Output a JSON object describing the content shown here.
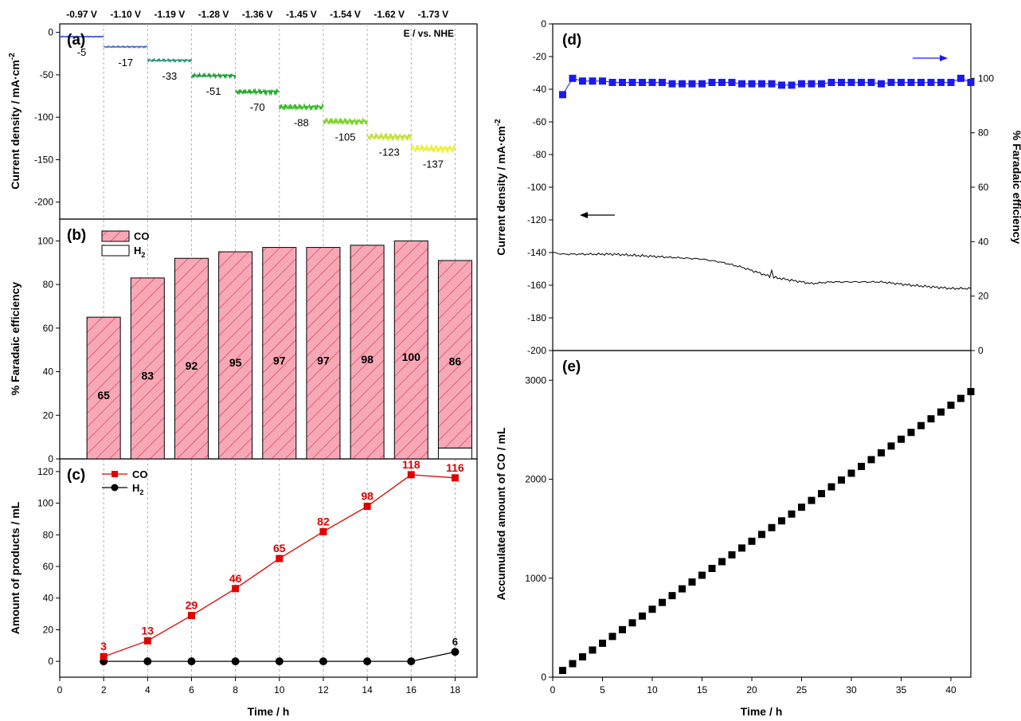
{
  "chart_data": [
    {
      "panel": "(a)",
      "type": "line",
      "ylabel": "Current density / mA·cm",
      "ylabel_sup": "-2",
      "xlim": [
        0,
        19
      ],
      "ylim": [
        -220,
        10
      ],
      "yticks": [
        0,
        -50,
        -100,
        -150,
        -200
      ],
      "annotation": "E / vs. NHE",
      "potentials": [
        "-0.97 V",
        "-1.10 V",
        "-1.19 V",
        "-1.28 V",
        "-1.36 V",
        "-1.45 V",
        "-1.54 V",
        "-1.62 V",
        "-1.73 V"
      ],
      "segments": [
        {
          "x": [
            0,
            2
          ],
          "value": -5,
          "label": "-5",
          "color": "#3a4fd6"
        },
        {
          "x": [
            2,
            4
          ],
          "value": -17,
          "label": "-17",
          "color": "#4a6fc0"
        },
        {
          "x": [
            4,
            6
          ],
          "value": -33,
          "label": "-33",
          "color": "#2a8f7a"
        },
        {
          "x": [
            6,
            8
          ],
          "value": -51,
          "label": "-51",
          "color": "#1f9a3c"
        },
        {
          "x": [
            8,
            10
          ],
          "value": -70,
          "label": "-70",
          "color": "#22a82a"
        },
        {
          "x": [
            10,
            12
          ],
          "value": -88,
          "label": "-88",
          "color": "#3cbc2a"
        },
        {
          "x": [
            12,
            14
          ],
          "value": -105,
          "label": "-105",
          "color": "#7fd12e"
        },
        {
          "x": [
            14,
            16
          ],
          "value": -123,
          "label": "-123",
          "color": "#c4e23a"
        },
        {
          "x": [
            16,
            18
          ],
          "value": -137,
          "label": "-137",
          "color": "#eeee3a"
        }
      ]
    },
    {
      "panel": "(b)",
      "type": "bar",
      "ylabel": "% Faradaic efficiency",
      "ylim": [
        0,
        110
      ],
      "yticks": [
        0,
        20,
        40,
        60,
        80,
        100
      ],
      "x": [
        2,
        4,
        6,
        8,
        10,
        12,
        14,
        16,
        18
      ],
      "series": [
        {
          "name": "CO",
          "values": [
            65,
            83,
            92,
            95,
            97,
            97,
            98,
            100,
            86
          ],
          "labels": [
            "65",
            "83",
            "92",
            "95",
            "97",
            "97",
            "98",
            "100",
            "86"
          ],
          "color": "#f7a8b6",
          "hatch": "#d9465c"
        },
        {
          "name": "H",
          "name_sub": "2",
          "values": [
            0,
            0,
            0,
            0,
            0,
            0,
            0,
            0,
            5
          ],
          "labels": [
            "",
            "",
            "",
            "",
            "",
            "",
            "",
            "",
            "5"
          ],
          "color": "#ffffff"
        }
      ]
    },
    {
      "panel": "(c)",
      "type": "line",
      "xlabel": "Time / h",
      "ylabel": "Amount of products / mL",
      "xlim": [
        0,
        19
      ],
      "xticks": [
        0,
        2,
        4,
        6,
        8,
        10,
        12,
        14,
        16,
        18
      ],
      "ylim": [
        -10,
        128
      ],
      "yticks": [
        0,
        20,
        40,
        60,
        80,
        100,
        120
      ],
      "x": [
        2,
        4,
        6,
        8,
        10,
        12,
        14,
        16,
        18
      ],
      "series": [
        {
          "name": "CO",
          "values": [
            3,
            13,
            29,
            46,
            65,
            82,
            98,
            118,
            116
          ],
          "labels": [
            "3",
            "13",
            "29",
            "46",
            "65",
            "82",
            "98",
            "118",
            "116"
          ],
          "color": "#e00000",
          "marker": "square"
        },
        {
          "name": "H",
          "name_sub": "2",
          "values": [
            0,
            0,
            0,
            0,
            0,
            0,
            0,
            0,
            6
          ],
          "labels": [
            "",
            "",
            "",
            "",
            "",
            "",
            "",
            "",
            "6"
          ],
          "color": "#000000",
          "marker": "circle"
        }
      ]
    },
    {
      "panel": "(d)",
      "type": "line",
      "ylabel": "Current density / mA·cm",
      "ylabel_sup": "-2",
      "y2label": "% Faradaic efficiency",
      "xlim": [
        0,
        42
      ],
      "ylim": [
        -200,
        0
      ],
      "yticks": [
        0,
        -20,
        -40,
        -60,
        -80,
        -100,
        -120,
        -140,
        -160,
        -180,
        -200
      ],
      "y2lim": [
        0,
        120
      ],
      "y2ticks": [
        0,
        20,
        40,
        60,
        80,
        100
      ],
      "faradaic_efficiency": {
        "x": [
          1,
          2,
          3,
          4,
          5,
          6,
          7,
          8,
          9,
          10,
          11,
          12,
          13,
          14,
          15,
          16,
          17,
          18,
          19,
          20,
          21,
          22,
          23,
          24,
          25,
          26,
          27,
          28,
          29,
          30,
          31,
          32,
          33,
          34,
          35,
          36,
          37,
          38,
          39,
          40,
          41,
          42
        ],
        "values": [
          94,
          100,
          99,
          99,
          99,
          98.5,
          98.5,
          98.5,
          98.5,
          98.5,
          98.5,
          98,
          98,
          98,
          98,
          98.5,
          98.5,
          98.5,
          98,
          98,
          98,
          98,
          97.5,
          97.5,
          98,
          98,
          98,
          98.5,
          98.5,
          98.5,
          98.5,
          98.5,
          98,
          98.5,
          98.5,
          98.5,
          98.5,
          98.5,
          98.5,
          98.5,
          100,
          98.5
        ],
        "color": "#1a1aee"
      },
      "current_density": {
        "x": [
          0,
          1,
          3,
          6,
          9,
          12,
          15,
          17,
          19,
          21,
          22,
          24,
          26,
          28,
          30,
          33,
          36,
          40,
          42
        ],
        "values": [
          -140,
          -141,
          -141,
          -141,
          -142,
          -143,
          -144,
          -146,
          -149,
          -153,
          -155,
          -157,
          -159,
          -158,
          -158,
          -158,
          -160,
          -162,
          -162
        ],
        "color": "#000000"
      }
    },
    {
      "panel": "(e)",
      "type": "scatter",
      "xlabel": "Time / h",
      "ylabel": "Accumulated amount of CO / mL",
      "xlim": [
        0,
        42
      ],
      "xticks": [
        0,
        5,
        10,
        15,
        20,
        25,
        30,
        35,
        40
      ],
      "ylim": [
        0,
        3300
      ],
      "yticks": [
        0,
        1000,
        2000,
        3000
      ],
      "x_start": 1,
      "x_end": 42,
      "y_start": 68,
      "y_end": 2885,
      "color": "#000000",
      "marker": "square"
    }
  ]
}
